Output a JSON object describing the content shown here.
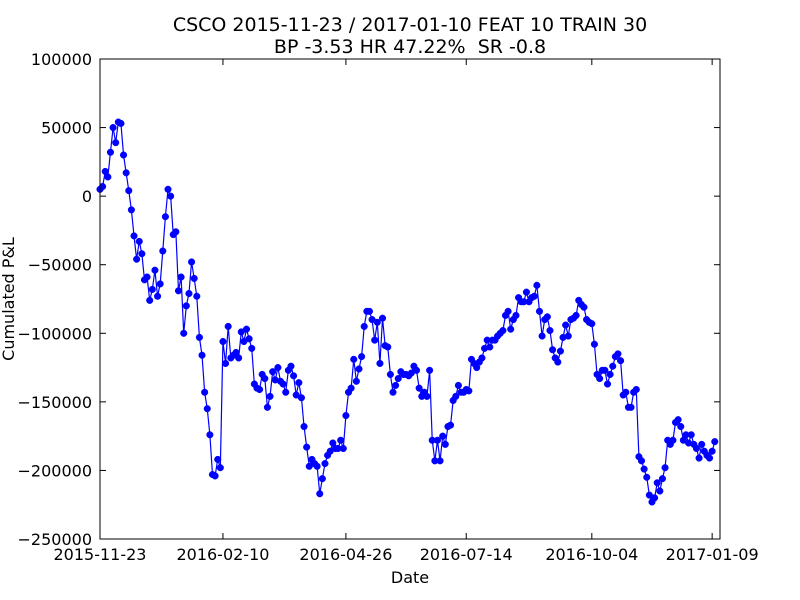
{
  "chart_data": {
    "type": "line",
    "title": "CSCO 2015-11-23 / 2017-01-10 FEAT 10 TRAIN 30",
    "subtitle": "BP -3.53 HR 47.22%  SR -0.8",
    "x_label": "Date",
    "y_label": "Cumulated P&L",
    "color": "#0000ff",
    "xlim": [
      0,
      237
    ],
    "xticks": [
      {
        "value": 0,
        "label": "2015-11-23"
      },
      {
        "value": 47,
        "label": "2016-02-10"
      },
      {
        "value": 94,
        "label": "2016-04-26"
      },
      {
        "value": 140,
        "label": "2016-07-14"
      },
      {
        "value": 188,
        "label": "2016-10-04"
      },
      {
        "value": 234,
        "label": "2017-01-09"
      }
    ],
    "ylim": [
      -250000,
      100000
    ],
    "yticks": [
      {
        "value": -250000,
        "label": "−250000"
      },
      {
        "value": -200000,
        "label": "−200000"
      },
      {
        "value": -150000,
        "label": "−150000"
      },
      {
        "value": -100000,
        "label": "−100000"
      },
      {
        "value": -50000,
        "label": "−50000"
      },
      0,
      50000,
      100000
    ],
    "values": [
      5000,
      7000,
      18000,
      14000,
      32000,
      50000,
      39000,
      54000,
      53000,
      30000,
      17000,
      4000,
      -10000,
      -29000,
      -46000,
      -33000,
      -42000,
      -61000,
      -59000,
      -76000,
      -68000,
      -54000,
      -73000,
      -64000,
      -40000,
      -15000,
      5000,
      0,
      -28000,
      -26000,
      -69000,
      -59000,
      -100000,
      -80000,
      -71000,
      -48000,
      -60000,
      -73000,
      -103000,
      -116000,
      -143000,
      -155000,
      -174000,
      -203000,
      -204000,
      -192000,
      -198000,
      -106000,
      -122000,
      -95000,
      -118000,
      -116000,
      -114000,
      -118000,
      -99000,
      -106000,
      -97000,
      -104000,
      -111000,
      -137000,
      -140000,
      -141000,
      -130000,
      -133000,
      -154000,
      -146000,
      -128000,
      -134000,
      -125000,
      -135000,
      -137000,
      -143000,
      -127000,
      -124000,
      -131000,
      -145000,
      -136000,
      -147000,
      -168000,
      -183000,
      -197000,
      -192000,
      -195000,
      -197000,
      -217000,
      -206000,
      -195000,
      -189000,
      -186000,
      -180000,
      -184000,
      -184000,
      -178000,
      -184000,
      -160000,
      -143000,
      -140000,
      -119000,
      -135000,
      -126000,
      -117000,
      -95000,
      -84000,
      -84000,
      -90000,
      -105000,
      -92000,
      -122000,
      -89000,
      -109000,
      -110000,
      -130000,
      -143000,
      -138000,
      -133000,
      -128000,
      -130000,
      -130000,
      -131000,
      -129000,
      -124000,
      -127000,
      -140000,
      -146000,
      -143000,
      -146000,
      -127000,
      -178000,
      -193000,
      -178000,
      -193000,
      -175000,
      -181000,
      -168000,
      -167000,
      -149000,
      -146000,
      -138000,
      -143000,
      -143000,
      -141000,
      -142000,
      -119000,
      -122000,
      -125000,
      -121000,
      -118000,
      -111000,
      -105000,
      -110000,
      -105000,
      -105000,
      -102000,
      -100000,
      -98000,
      -87000,
      -84000,
      -97000,
      -90000,
      -87000,
      -74000,
      -77000,
      -77000,
      -70000,
      -77000,
      -74000,
      -73000,
      -65000,
      -84000,
      -102000,
      -90000,
      -88000,
      -98000,
      -112000,
      -118000,
      -121000,
      -113000,
      -103000,
      -94000,
      -102000,
      -90000,
      -89000,
      -87000,
      -76000,
      -79000,
      -81000,
      -90000,
      -92000,
      -93000,
      -108000,
      -130000,
      -133000,
      -127000,
      -127000,
      -137000,
      -130000,
      -124000,
      -117000,
      -115000,
      -120000,
      -145000,
      -143000,
      -154000,
      -154000,
      -143000,
      -141000,
      -190000,
      -193000,
      -199000,
      -205000,
      -218000,
      -223000,
      -220000,
      -209000,
      -215000,
      -206000,
      -198000,
      -178000,
      -181000,
      -178000,
      -165000,
      -163000,
      -168000,
      -178000,
      -174000,
      -180000,
      -174000,
      -181000,
      -184000,
      -191000,
      -181000,
      -186000,
      -189000,
      -191000,
      -186000,
      -179000
    ]
  }
}
